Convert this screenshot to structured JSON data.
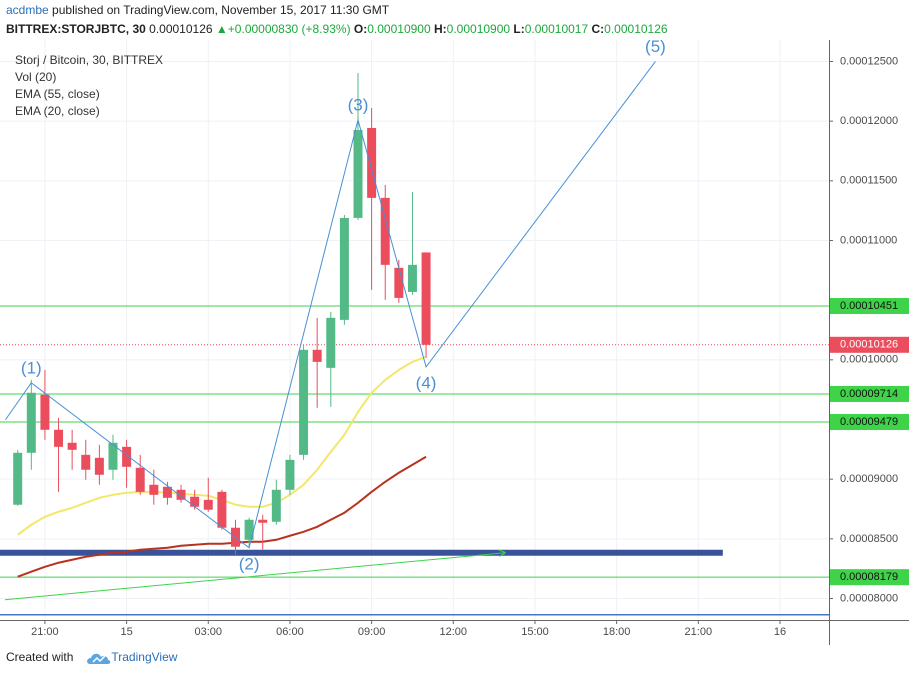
{
  "header": {
    "author": "acdmbe",
    "published": "published on TradingView.com, November 15, 2017 11:30 GMT",
    "symbol": "BITTREX:STORJBTC, 30",
    "price": "0.00010126",
    "change": "+0.00000830 (+8.93%)",
    "ohlc": [
      {
        "label": "O:",
        "value": "0.00010900"
      },
      {
        "label": "H:",
        "value": "0.00010900"
      },
      {
        "label": "L:",
        "value": "0.00010017"
      },
      {
        "label": "C:",
        "value": "0.00010126"
      }
    ]
  },
  "footer": {
    "text": "Created with",
    "brand": "TradingView"
  },
  "chart_data": {
    "type": "candlestick",
    "title": "Storj / Bitcoin, 30, BITTREX",
    "volume_label": "Vol (20)",
    "up_color": "#53b987",
    "down_color": "#eb4d5c",
    "x": [
      0,
      1,
      2,
      3,
      4,
      5,
      6,
      7,
      8,
      9,
      10,
      11,
      12,
      13,
      14,
      15,
      16,
      17,
      18,
      19,
      20,
      21,
      22,
      23,
      24,
      25,
      26,
      27,
      28,
      29,
      30
    ],
    "open": [
      8.786e-05,
      9.221e-05,
      9.707e-05,
      9.414e-05,
      9.305e-05,
      9.204e-05,
      9.179e-05,
      9.079e-05,
      9.271e-05,
      9.095e-05,
      8.953e-05,
      8.936e-05,
      8.911e-05,
      8.853e-05,
      8.827e-05,
      8.894e-05,
      8.593e-05,
      8.492e-05,
      8.66e-05,
      8.643e-05,
      8.911e-05,
      9.204e-05,
      0.00010084,
      9.933e-05,
      0.00010335,
      0.00011189,
      0.00011943,
      0.00011357,
      0.00010771,
      0.00010569,
      0.000109
    ],
    "high": [
      9.246e-05,
      9.832e-05,
      9.916e-05,
      9.514e-05,
      9.414e-05,
      9.33e-05,
      9.288e-05,
      9.372e-05,
      9.33e-05,
      9.204e-05,
      9.079e-05,
      8.978e-05,
      8.953e-05,
      8.911e-05,
      9.012e-05,
      8.911e-05,
      8.66e-05,
      8.677e-05,
      8.702e-05,
      8.995e-05,
      9.204e-05,
      0.00010126,
      0.00010352,
      0.00010402,
      0.00011214,
      0.00012404,
      0.00012111,
      0.00011466,
      0.00010838,
      0.00011407,
      0.000109
    ],
    "low": [
      8.777e-05,
      9.079e-05,
      9.33e-05,
      8.894e-05,
      9.079e-05,
      8.995e-05,
      8.953e-05,
      8.995e-05,
      8.928e-05,
      8.869e-05,
      8.786e-05,
      8.786e-05,
      8.802e-05,
      8.744e-05,
      8.727e-05,
      8.576e-05,
      8.367e-05,
      8.425e-05,
      8.409e-05,
      8.618e-05,
      8.869e-05,
      9.162e-05,
      9.598e-05,
      9.606e-05,
      0.00010293,
      0.00011173,
      0.00010586,
      0.00010503,
      0.00010477,
      0.00010544,
      0.00010017
    ],
    "close": [
      9.221e-05,
      9.724e-05,
      9.414e-05,
      9.271e-05,
      9.246e-05,
      9.079e-05,
      9.037e-05,
      9.305e-05,
      9.104e-05,
      8.894e-05,
      8.869e-05,
      8.844e-05,
      8.827e-05,
      8.769e-05,
      8.744e-05,
      8.593e-05,
      8.434e-05,
      8.66e-05,
      8.635e-05,
      8.911e-05,
      9.162e-05,
      0.00010084,
      9.983e-05,
      0.00010352,
      0.00011189,
      0.00011926,
      0.00011357,
      0.00010796,
      0.00010519,
      0.00010796,
      0.00010126
    ],
    "indicators": [
      {
        "name": "EMA (55, close)",
        "color": "#b8321e",
        "values": [
          8.183e-05,
          8.225e-05,
          8.266e-05,
          8.3e-05,
          8.325e-05,
          8.35e-05,
          8.367e-05,
          8.384e-05,
          8.392e-05,
          8.409e-05,
          8.417e-05,
          8.425e-05,
          8.442e-05,
          8.451e-05,
          8.459e-05,
          8.459e-05,
          8.467e-05,
          8.476e-05,
          8.476e-05,
          8.492e-05,
          8.526e-05,
          8.559e-05,
          8.601e-05,
          8.66e-05,
          8.719e-05,
          8.802e-05,
          8.894e-05,
          8.978e-05,
          9.054e-05,
          9.121e-05,
          9.188e-05
        ]
      },
      {
        "name": "EMA (20, close)",
        "color": "#f3e76a",
        "values": [
          8.534e-05,
          8.618e-05,
          8.685e-05,
          8.727e-05,
          8.76e-05,
          8.802e-05,
          8.844e-05,
          8.869e-05,
          8.886e-05,
          8.894e-05,
          8.894e-05,
          8.886e-05,
          8.878e-05,
          8.869e-05,
          8.861e-05,
          8.827e-05,
          8.786e-05,
          8.769e-05,
          8.769e-05,
          8.802e-05,
          8.869e-05,
          8.953e-05,
          9.079e-05,
          9.229e-05,
          9.372e-05,
          9.564e-05,
          9.724e-05,
          9.832e-05,
          9.916e-05,
          9.983e-05,
          0.00010025
        ]
      }
    ],
    "waves": {
      "color": "#4a8fd6",
      "points": [
        {
          "x": -0.9,
          "y": 9.498e-05
        },
        {
          "label": "(1)",
          "x": 1,
          "y": 9.807e-05
        },
        {
          "label": "(2)",
          "x": 17,
          "y": 8.425e-05
        },
        {
          "label": "(3)",
          "x": 25,
          "y": 0.0001201
        },
        {
          "label": "(4)",
          "x": 30,
          "y": 9.941e-05
        },
        {
          "label": "(5)",
          "x": 46.85,
          "y": 0.000125
        }
      ]
    },
    "levels": [
      {
        "value": 0.00010451,
        "color": "#3fd34a"
      },
      {
        "value": 9.714e-05,
        "color": "#3fd34a"
      },
      {
        "value": 9.479e-05,
        "color": "#3fd34a"
      },
      {
        "value": 8.179e-05,
        "color": "#3fd34a"
      }
    ],
    "current_price": 0.00010126,
    "lines": [
      {
        "style": "band",
        "color": "#22408f",
        "x": [
          -1.3,
          51.8
        ],
        "y": [
          8.384e-05,
          8.384e-05
        ]
      },
      {
        "style": "arrow",
        "color": "#3fd34a",
        "x": [
          -0.94,
          35.8
        ],
        "y": [
          7.99e-05,
          8.384e-05
        ]
      },
      {
        "style": "thin",
        "color": "#4a74c9",
        "x": [
          -1.3,
          59.6
        ],
        "y": [
          7.864e-05,
          7.864e-05
        ]
      }
    ],
    "xlim": [
      -1.3,
      59.6
    ],
    "xticks": [
      {
        "value": 2,
        "label": "21:00"
      },
      {
        "value": 8,
        "label": "15"
      },
      {
        "value": 14,
        "label": "03:00"
      },
      {
        "value": 20,
        "label": "06:00"
      },
      {
        "value": 26,
        "label": "09:00"
      },
      {
        "value": 32,
        "label": "12:00"
      },
      {
        "value": 38,
        "label": "15:00"
      },
      {
        "value": 44,
        "label": "18:00"
      },
      {
        "value": 50,
        "label": "21:00"
      },
      {
        "value": 56,
        "label": "16"
      }
    ],
    "ylim": [
      7.82e-05,
      0.0001268
    ],
    "yticks": [
      {
        "value": 0.000125,
        "label": "0.00012500"
      },
      {
        "value": 0.00012,
        "label": "0.00012000"
      },
      {
        "value": 0.000115,
        "label": "0.00011500"
      },
      {
        "value": 0.00011,
        "label": "0.00011000"
      },
      {
        "value": 0.0001,
        "label": "0.00010000"
      },
      {
        "value": 9e-05,
        "label": "0.00009000"
      },
      {
        "value": 8.5e-05,
        "label": "0.00008500"
      },
      {
        "value": 8e-05,
        "label": "0.00008000"
      }
    ],
    "grid": true
  }
}
